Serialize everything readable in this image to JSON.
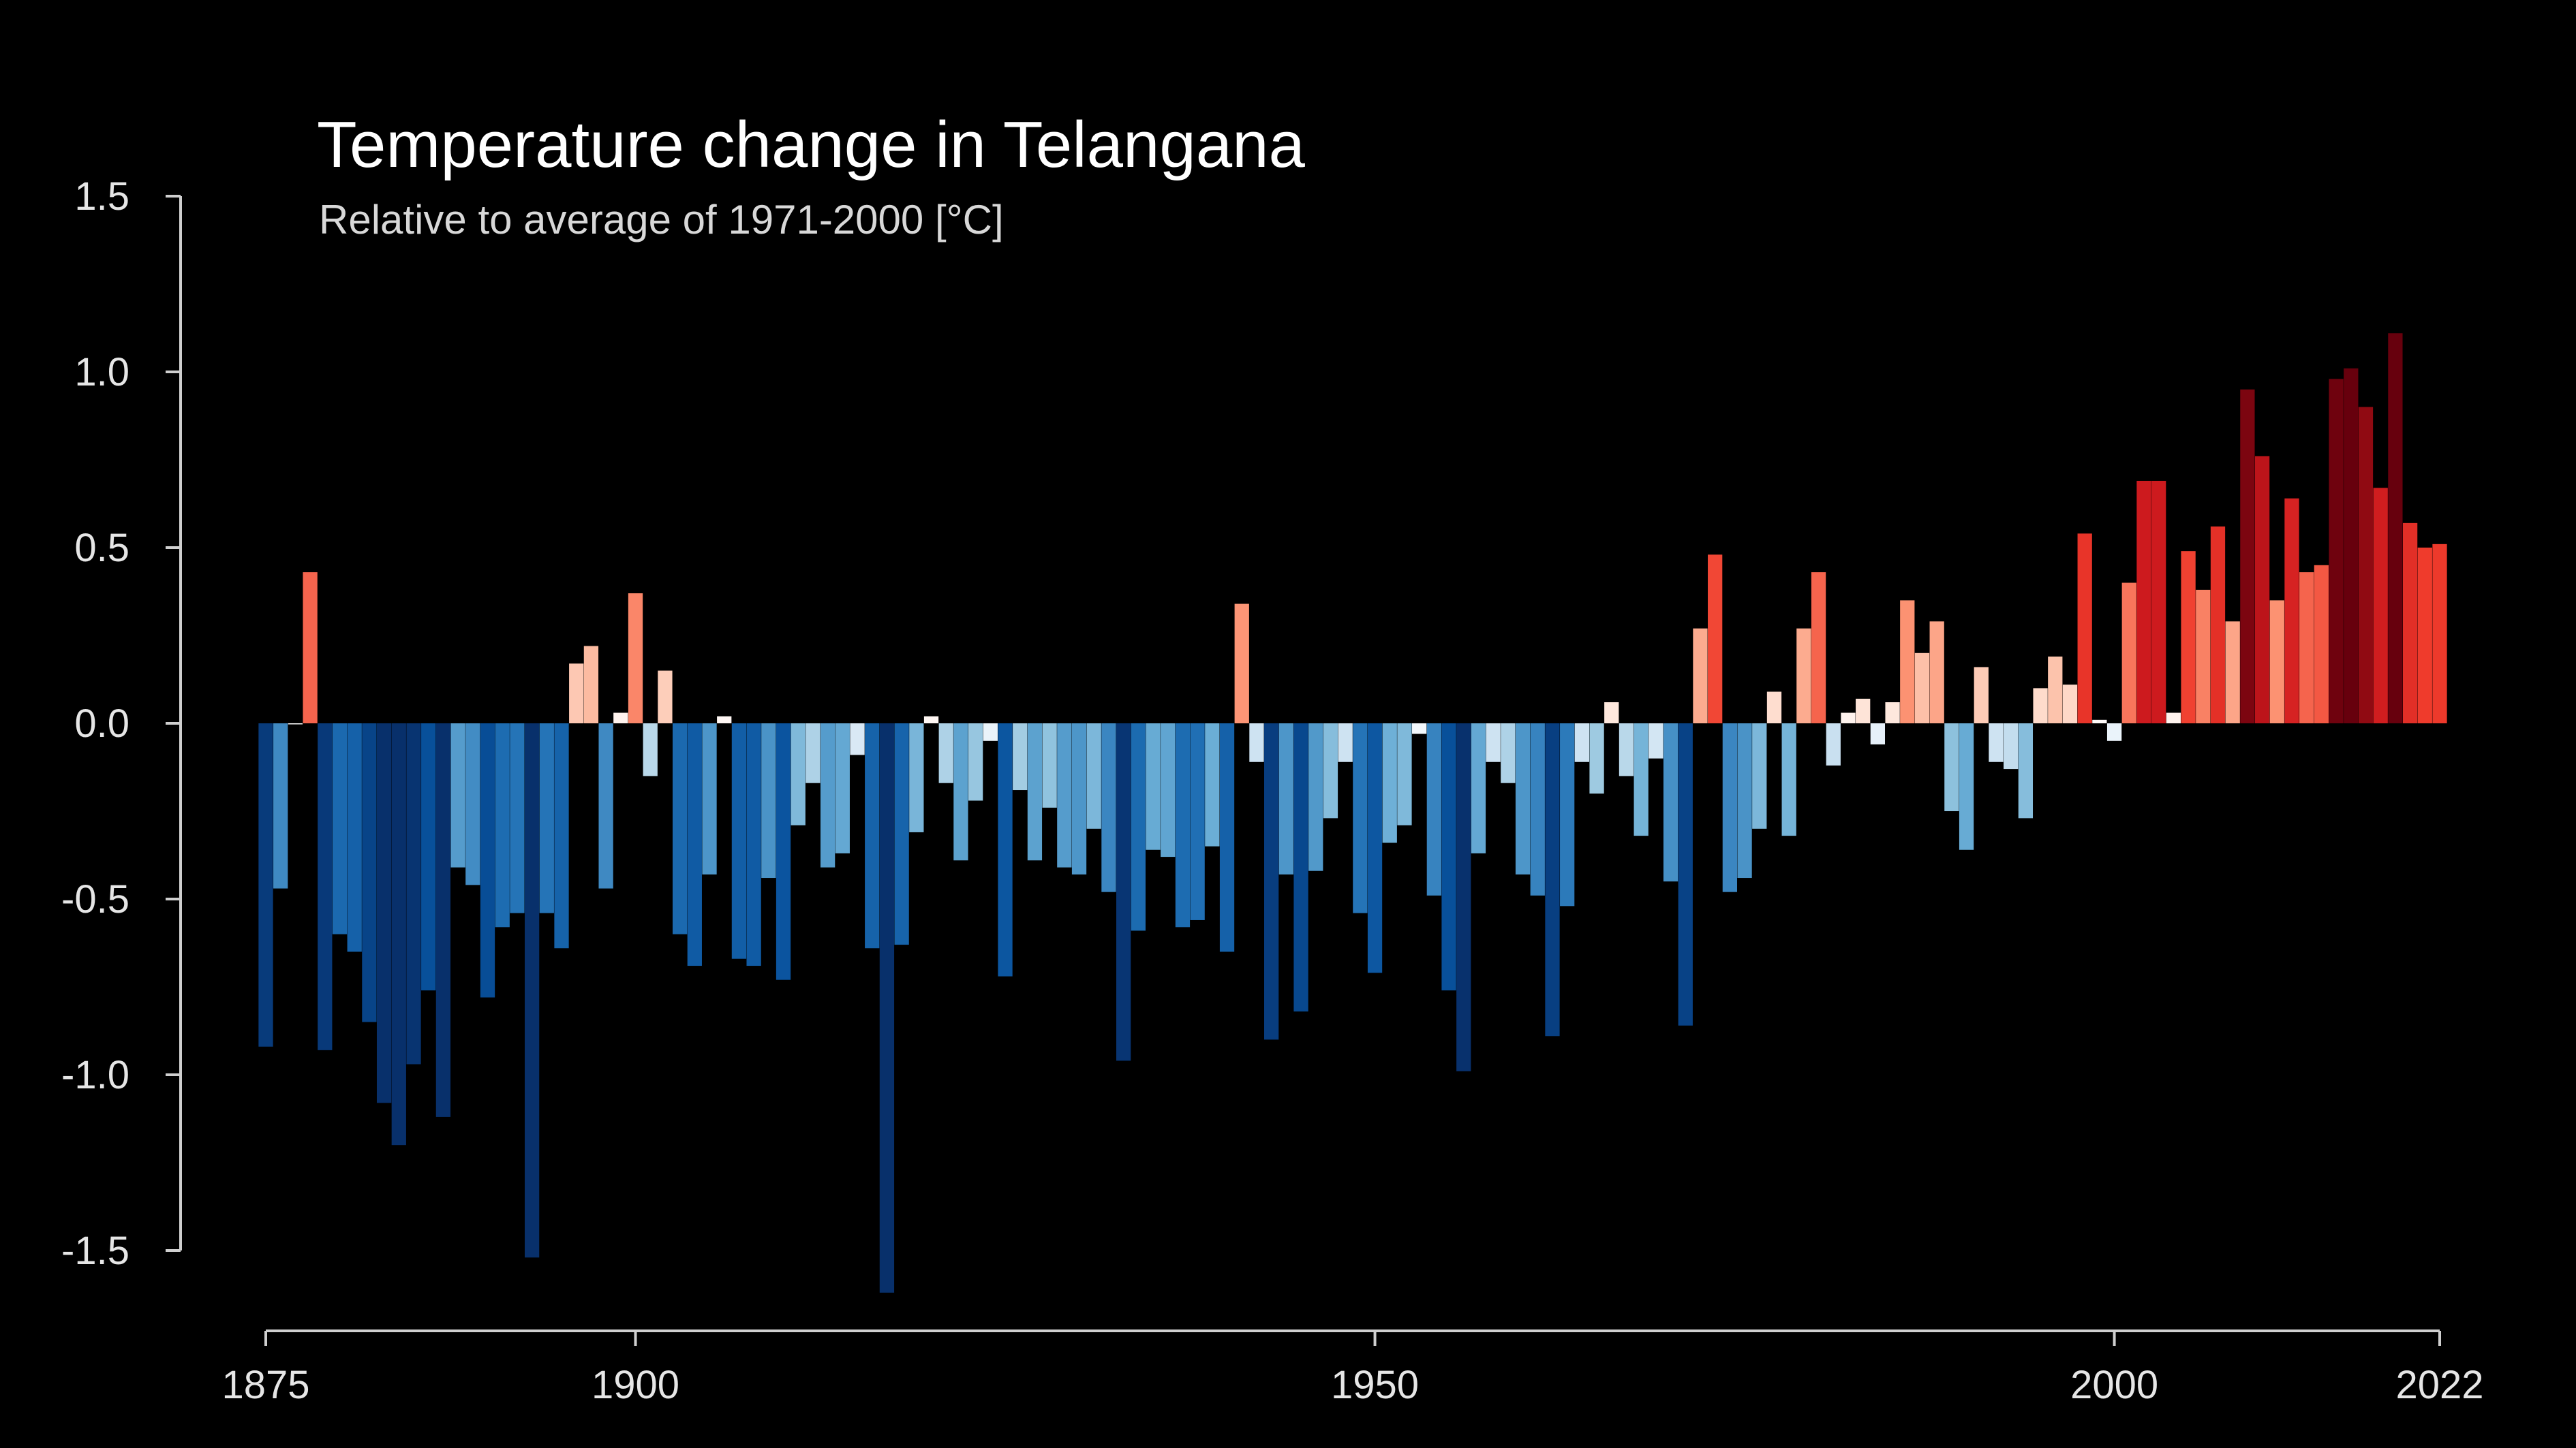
{
  "chart_data": {
    "type": "bar",
    "title": "Temperature change in Telangana",
    "subtitle": "Relative to average of 1971-2000  [°C]",
    "x_range": [
      1875,
      2022
    ],
    "ylim": [
      -1.5,
      1.5
    ],
    "y_ticks": [
      "1.5",
      "1.0",
      "0.5",
      "0.0",
      "-0.5",
      "-1.0",
      "-1.5"
    ],
    "x_ticks": [
      "1875",
      "1900",
      "1950",
      "2000",
      "2022"
    ],
    "grid": false,
    "legend": "none",
    "color_scale": {
      "cold": "#08306b",
      "neutral": "#f7f7f7",
      "warm": "#67000d"
    },
    "values": [
      -0.92,
      -0.47,
      0.0,
      0.43,
      -0.93,
      -0.6,
      -0.65,
      -0.85,
      -1.08,
      -1.2,
      -0.97,
      -0.76,
      -1.12,
      -0.41,
      -0.46,
      -0.78,
      -0.58,
      -0.54,
      -1.52,
      -0.54,
      -0.64,
      0.17,
      0.22,
      -0.47,
      0.03,
      0.37,
      -0.15,
      0.15,
      -0.6,
      -0.69,
      -0.43,
      0.02,
      -0.67,
      -0.69,
      -0.44,
      -0.73,
      -0.29,
      -0.17,
      -0.41,
      -0.37,
      -0.09,
      -0.64,
      -1.62,
      -0.63,
      -0.31,
      0.02,
      -0.17,
      -0.39,
      -0.22,
      -0.05,
      -0.72,
      -0.19,
      -0.39,
      -0.24,
      -0.41,
      -0.43,
      -0.3,
      -0.48,
      -0.96,
      -0.59,
      -0.36,
      -0.38,
      -0.58,
      -0.56,
      -0.35,
      -0.65,
      0.34,
      -0.11,
      -0.9,
      -0.43,
      -0.82,
      -0.42,
      -0.27,
      -0.11,
      -0.54,
      -0.71,
      -0.34,
      -0.29,
      -0.03,
      -0.49,
      -0.76,
      -0.99,
      -0.37,
      -0.11,
      -0.17,
      -0.43,
      -0.49,
      -0.89,
      -0.52,
      -0.11,
      -0.2,
      0.06,
      -0.15,
      -0.32,
      -0.1,
      -0.45,
      -0.86,
      0.27,
      0.48,
      -0.48,
      -0.44,
      -0.3,
      0.09,
      -0.32,
      0.27,
      0.43,
      -0.12,
      0.03,
      0.07,
      -0.06,
      0.06,
      0.35,
      0.2,
      0.29,
      -0.25,
      -0.36,
      0.16,
      -0.11,
      -0.13,
      -0.27,
      0.1,
      0.19,
      0.11,
      0.54,
      0.01,
      -0.05,
      0.4,
      0.69,
      0.69,
      0.03,
      0.49,
      0.38,
      0.56,
      0.29,
      0.95,
      0.76,
      0.35,
      0.64,
      0.43,
      0.45,
      0.98,
      1.01,
      0.9,
      0.67,
      1.11,
      0.57,
      0.5,
      0.51
    ]
  }
}
